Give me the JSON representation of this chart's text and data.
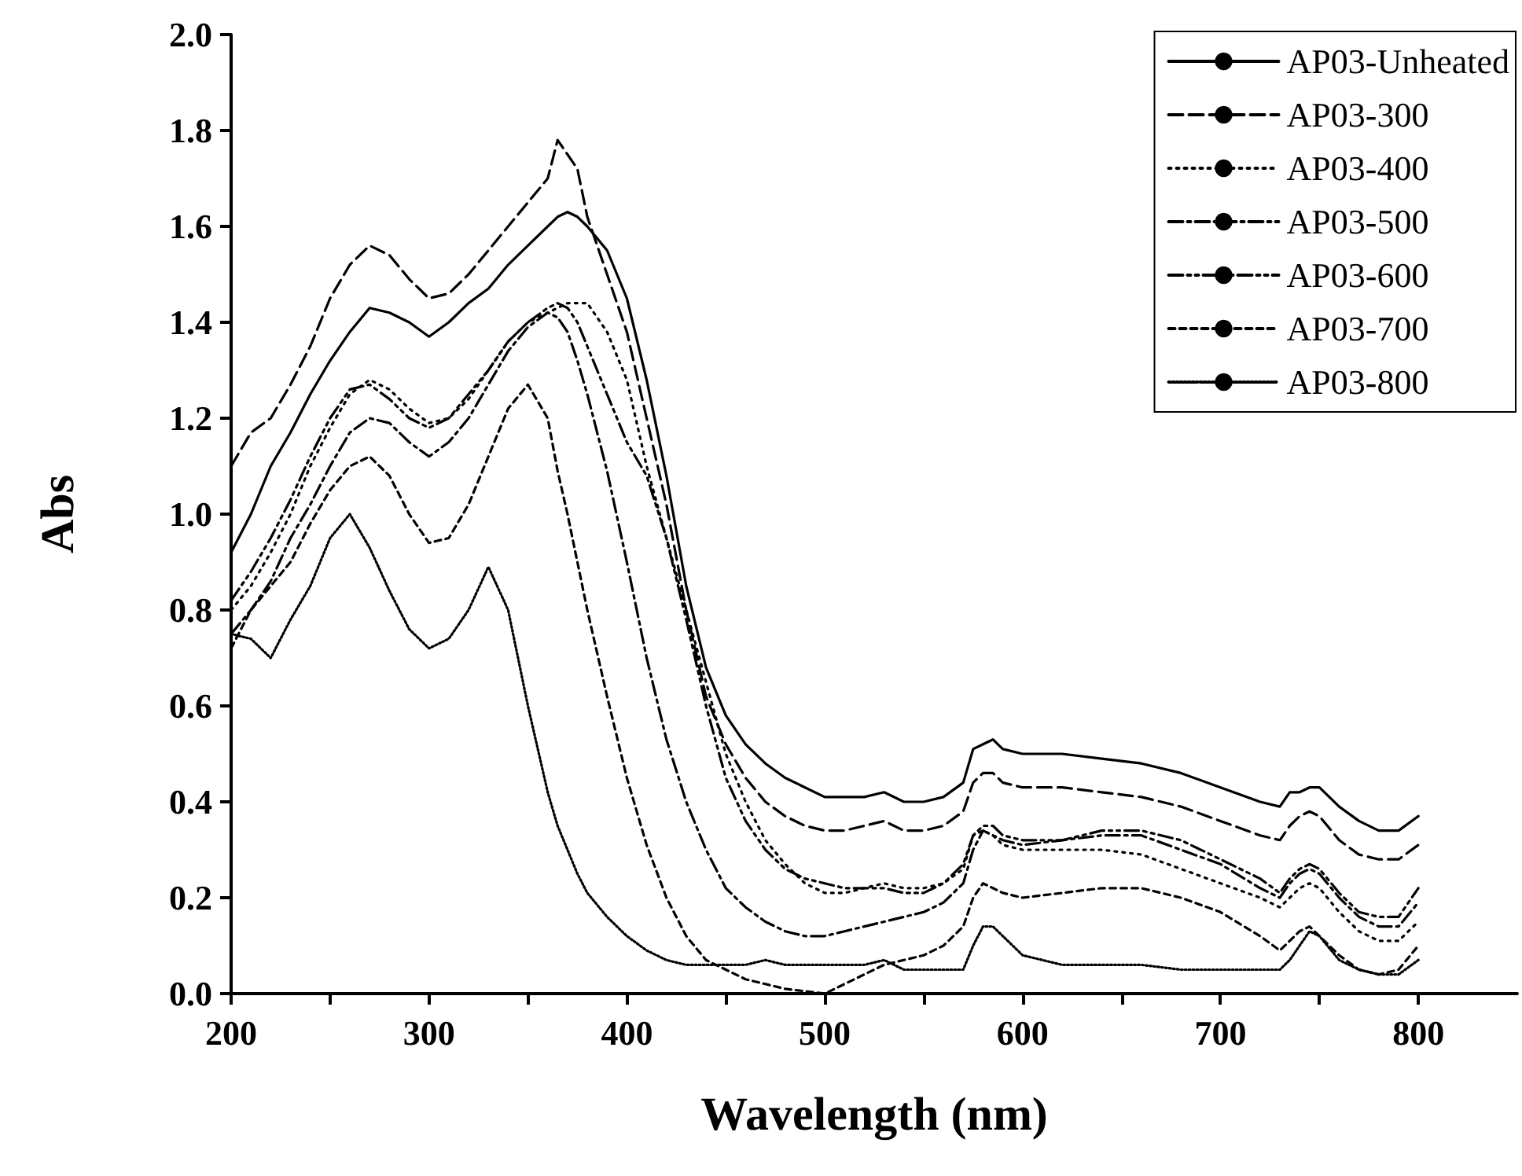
{
  "chart_data": {
    "type": "line",
    "xlabel": "Wavelength (nm)",
    "ylabel": "Abs",
    "x": [
      200,
      210,
      220,
      230,
      240,
      250,
      260,
      270,
      280,
      290,
      300,
      310,
      320,
      330,
      340,
      350,
      360,
      365,
      370,
      375,
      380,
      390,
      400,
      410,
      420,
      430,
      440,
      450,
      460,
      470,
      480,
      490,
      500,
      510,
      520,
      530,
      540,
      550,
      560,
      570,
      575,
      580,
      585,
      590,
      600,
      620,
      640,
      660,
      680,
      700,
      720,
      730,
      735,
      740,
      745,
      750,
      760,
      770,
      780,
      790,
      800
    ],
    "series": [
      {
        "name": "AP03-Unheated",
        "color": "#000000",
        "line_style": "solid",
        "values": [
          0.92,
          1.0,
          1.1,
          1.17,
          1.25,
          1.32,
          1.38,
          1.43,
          1.42,
          1.4,
          1.37,
          1.4,
          1.44,
          1.47,
          1.52,
          1.56,
          1.6,
          1.62,
          1.63,
          1.62,
          1.6,
          1.55,
          1.45,
          1.28,
          1.08,
          0.85,
          0.68,
          0.58,
          0.52,
          0.48,
          0.45,
          0.43,
          0.41,
          0.41,
          0.41,
          0.42,
          0.4,
          0.4,
          0.41,
          0.44,
          0.51,
          0.52,
          0.53,
          0.51,
          0.5,
          0.5,
          0.49,
          0.48,
          0.46,
          0.43,
          0.4,
          0.39,
          0.42,
          0.42,
          0.43,
          0.43,
          0.39,
          0.36,
          0.34,
          0.34,
          0.37
        ]
      },
      {
        "name": "AP03-300",
        "color": "#000000",
        "line_style": "dashed",
        "values": [
          1.1,
          1.17,
          1.2,
          1.27,
          1.35,
          1.45,
          1.52,
          1.56,
          1.54,
          1.49,
          1.45,
          1.46,
          1.5,
          1.55,
          1.6,
          1.65,
          1.7,
          1.78,
          1.75,
          1.72,
          1.62,
          1.5,
          1.38,
          1.2,
          1.02,
          0.8,
          0.62,
          0.52,
          0.45,
          0.4,
          0.37,
          0.35,
          0.34,
          0.34,
          0.35,
          0.36,
          0.34,
          0.34,
          0.35,
          0.38,
          0.44,
          0.46,
          0.46,
          0.44,
          0.43,
          0.43,
          0.42,
          0.41,
          0.39,
          0.36,
          0.33,
          0.32,
          0.35,
          0.37,
          0.38,
          0.37,
          0.32,
          0.29,
          0.28,
          0.28,
          0.31
        ]
      },
      {
        "name": "AP03-400",
        "color": "#000000",
        "line_style": "dotted",
        "values": [
          0.8,
          0.85,
          0.92,
          1.0,
          1.1,
          1.18,
          1.25,
          1.28,
          1.26,
          1.22,
          1.19,
          1.2,
          1.24,
          1.3,
          1.36,
          1.4,
          1.42,
          1.43,
          1.44,
          1.44,
          1.44,
          1.38,
          1.28,
          1.1,
          0.95,
          0.8,
          0.65,
          0.5,
          0.4,
          0.32,
          0.27,
          0.23,
          0.21,
          0.21,
          0.22,
          0.23,
          0.22,
          0.22,
          0.23,
          0.26,
          0.33,
          0.34,
          0.33,
          0.31,
          0.3,
          0.3,
          0.3,
          0.29,
          0.26,
          0.23,
          0.2,
          0.18,
          0.2,
          0.22,
          0.23,
          0.22,
          0.17,
          0.13,
          0.11,
          0.11,
          0.15
        ]
      },
      {
        "name": "AP03-500",
        "color": "#000000",
        "line_style": "dashdot",
        "values": [
          0.75,
          0.8,
          0.86,
          0.95,
          1.02,
          1.1,
          1.17,
          1.2,
          1.19,
          1.15,
          1.12,
          1.15,
          1.2,
          1.27,
          1.34,
          1.39,
          1.42,
          1.41,
          1.38,
          1.32,
          1.25,
          1.09,
          0.9,
          0.7,
          0.53,
          0.4,
          0.3,
          0.22,
          0.18,
          0.15,
          0.13,
          0.12,
          0.12,
          0.13,
          0.14,
          0.15,
          0.16,
          0.17,
          0.19,
          0.23,
          0.3,
          0.34,
          0.33,
          0.32,
          0.31,
          0.32,
          0.33,
          0.33,
          0.3,
          0.27,
          0.22,
          0.2,
          0.23,
          0.25,
          0.26,
          0.25,
          0.2,
          0.16,
          0.14,
          0.14,
          0.19
        ]
      },
      {
        "name": "AP03-600",
        "color": "#000000",
        "line_style": "dashdotdot",
        "values": [
          0.82,
          0.88,
          0.95,
          1.03,
          1.12,
          1.2,
          1.26,
          1.27,
          1.24,
          1.2,
          1.18,
          1.2,
          1.25,
          1.3,
          1.36,
          1.4,
          1.43,
          1.44,
          1.43,
          1.4,
          1.35,
          1.25,
          1.15,
          1.08,
          0.95,
          0.78,
          0.6,
          0.45,
          0.36,
          0.3,
          0.26,
          0.24,
          0.23,
          0.22,
          0.22,
          0.22,
          0.21,
          0.21,
          0.23,
          0.27,
          0.33,
          0.35,
          0.35,
          0.33,
          0.32,
          0.32,
          0.34,
          0.34,
          0.32,
          0.28,
          0.24,
          0.21,
          0.24,
          0.26,
          0.27,
          0.26,
          0.21,
          0.17,
          0.16,
          0.16,
          0.22
        ]
      },
      {
        "name": "AP03-700",
        "color": "#000000",
        "line_style": "shortdash",
        "values": [
          0.72,
          0.8,
          0.85,
          0.9,
          0.98,
          1.05,
          1.1,
          1.12,
          1.08,
          1.0,
          0.94,
          0.95,
          1.02,
          1.12,
          1.22,
          1.27,
          1.2,
          1.09,
          1.0,
          0.9,
          0.8,
          0.62,
          0.45,
          0.31,
          0.2,
          0.12,
          0.07,
          0.05,
          0.03,
          0.02,
          0.01,
          0.005,
          0.0,
          0.02,
          0.04,
          0.06,
          0.07,
          0.08,
          0.1,
          0.14,
          0.2,
          0.23,
          0.22,
          0.21,
          0.2,
          0.21,
          0.22,
          0.22,
          0.2,
          0.17,
          0.12,
          0.09,
          0.11,
          0.13,
          0.14,
          0.12,
          0.08,
          0.05,
          0.04,
          0.05,
          0.1
        ]
      },
      {
        "name": "AP03-800",
        "color": "#000000",
        "line_style": "finedotted",
        "values": [
          0.75,
          0.74,
          0.7,
          0.78,
          0.85,
          0.95,
          1.0,
          0.93,
          0.84,
          0.76,
          0.72,
          0.74,
          0.8,
          0.89,
          0.8,
          0.6,
          0.42,
          0.35,
          0.3,
          0.25,
          0.21,
          0.16,
          0.12,
          0.09,
          0.07,
          0.06,
          0.06,
          0.06,
          0.06,
          0.07,
          0.06,
          0.06,
          0.06,
          0.06,
          0.06,
          0.07,
          0.05,
          0.05,
          0.05,
          0.05,
          0.1,
          0.14,
          0.14,
          0.12,
          0.08,
          0.06,
          0.06,
          0.06,
          0.05,
          0.05,
          0.05,
          0.05,
          0.07,
          0.1,
          0.13,
          0.12,
          0.07,
          0.05,
          0.04,
          0.04,
          0.07
        ]
      }
    ],
    "xlim": [
      200,
      850
    ],
    "xticks": [
      200,
      {
        "value": 250,
        "label": null
      },
      300,
      {
        "value": 350,
        "label": null
      },
      400,
      {
        "value": 450,
        "label": null
      },
      500,
      {
        "value": 550,
        "label": null
      },
      600,
      {
        "value": 650,
        "label": null
      },
      700,
      {
        "value": 750,
        "label": null
      },
      800
    ],
    "ylim": [
      0,
      2
    ],
    "yticks": [
      {
        "value": 0,
        "label": "0.0"
      },
      0.2,
      0.4,
      0.6,
      0.8,
      {
        "value": 1,
        "label": "1.0"
      },
      1.2,
      1.4,
      1.6,
      1.8,
      {
        "value": 2,
        "label": "2.0"
      }
    ],
    "legend": "top right",
    "marker": "none",
    "grid": false
  }
}
